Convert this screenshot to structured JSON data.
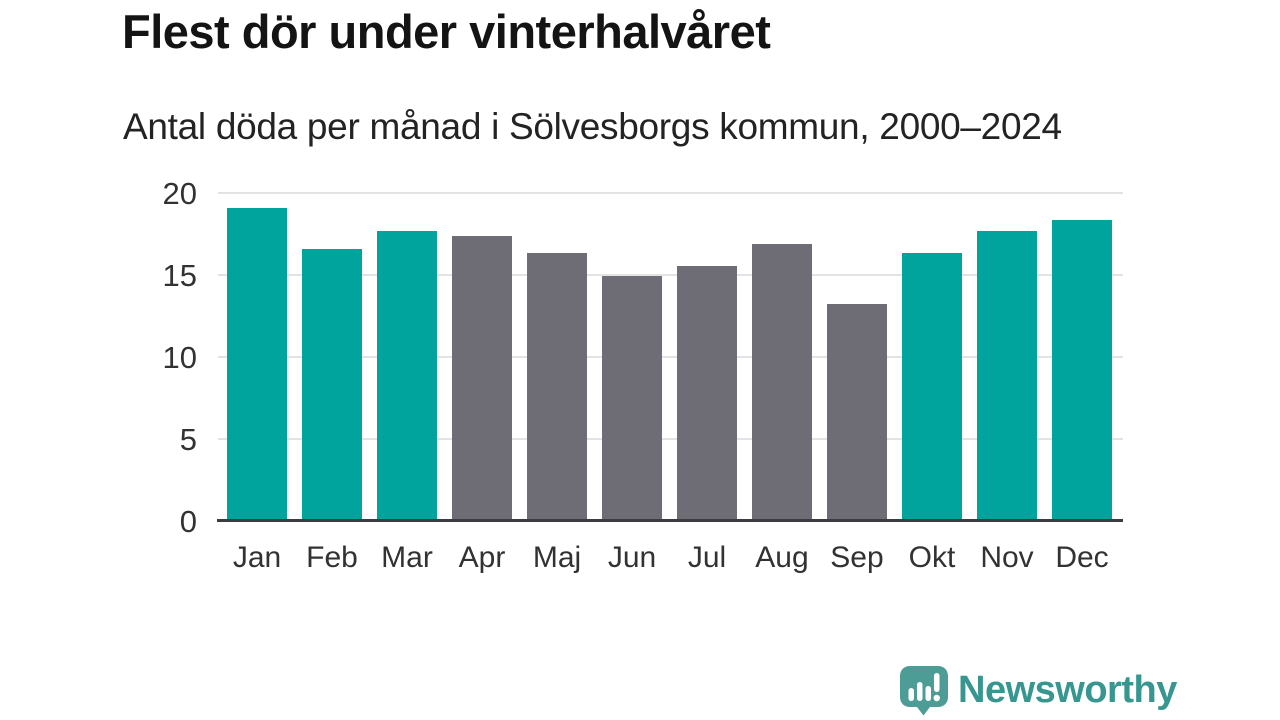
{
  "header": {
    "title": "Flest dör under vinterhalvåret",
    "subtitle": "Antal döda per månad i Sölvesborgs kommun, 2000–2024"
  },
  "chart_data": {
    "type": "bar",
    "title": "Flest dör under vinterhalvåret",
    "subtitle": "Antal döda per månad i Sölvesborgs kommun, 2000–2024",
    "categories": [
      "Jan",
      "Feb",
      "Mar",
      "Apr",
      "Maj",
      "Jun",
      "Jul",
      "Aug",
      "Sep",
      "Okt",
      "Nov",
      "Dec"
    ],
    "values": [
      19.0,
      16.5,
      17.6,
      17.3,
      16.3,
      14.9,
      15.5,
      16.8,
      13.2,
      16.3,
      17.6,
      18.3
    ],
    "highlighted": [
      true,
      true,
      true,
      false,
      false,
      false,
      false,
      false,
      false,
      true,
      true,
      true
    ],
    "xlabel": "",
    "ylabel": "",
    "ylim": [
      0,
      20
    ],
    "yticks": [
      0,
      5,
      10,
      15,
      20
    ],
    "grid": true,
    "legend": false,
    "colors": {
      "highlight": "#00A49D",
      "base": "#6E6C74",
      "gridline": "#e3e3e3",
      "axis": "#3b3b40",
      "tick_text": "#323232"
    }
  },
  "footer": {
    "brand": "Newsworthy",
    "brand_color": "#37968F",
    "logo_bubble_color": "#4D9D96",
    "logo_icon": "bar-chart-exclamation-speech-bubble"
  }
}
